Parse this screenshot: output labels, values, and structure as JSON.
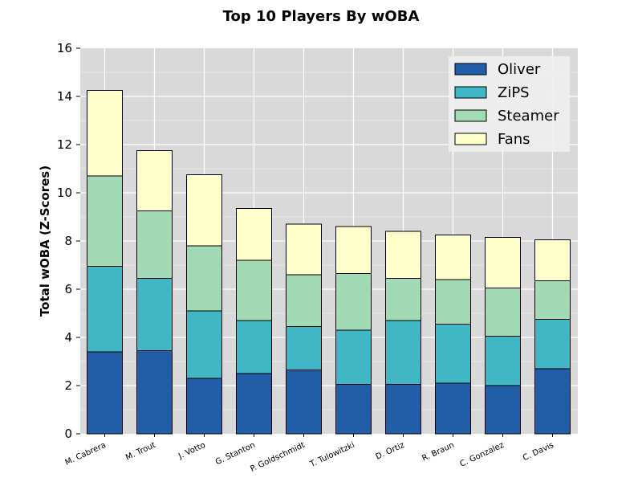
{
  "chart_data": {
    "type": "bar",
    "stacked": true,
    "title": "Top 10 Players By wOBA",
    "xlabel": "",
    "ylabel": "Total wOBA (Z-Scores)",
    "ylim": [
      0,
      16
    ],
    "yticks": [
      "0",
      "2",
      "4",
      "6",
      "8",
      "10",
      "12",
      "14",
      "16"
    ],
    "grid": true,
    "legend_position": "top-right",
    "categories": [
      "M. Cabrera",
      "M. Trout",
      "J. Votto",
      "G. Stanton",
      "P. Goldschmidt",
      "T. Tulowitzki",
      "D. Ortiz",
      "R. Braun",
      "C. Gonzalez",
      "C. Davis"
    ],
    "series": [
      {
        "name": "Oliver",
        "color": "#225ea8",
        "values": [
          3.4,
          3.45,
          2.3,
          2.5,
          2.65,
          2.05,
          2.05,
          2.1,
          2.0,
          2.7
        ]
      },
      {
        "name": "ZiPS",
        "color": "#41b6c4",
        "values": [
          3.55,
          3.0,
          2.8,
          2.2,
          1.8,
          2.25,
          2.65,
          2.45,
          2.05,
          2.05
        ]
      },
      {
        "name": "Steamer",
        "color": "#a1dab4",
        "values": [
          3.75,
          2.8,
          2.7,
          2.5,
          2.15,
          2.35,
          1.75,
          1.85,
          2.0,
          1.6
        ]
      },
      {
        "name": "Fans",
        "color": "#ffffcc",
        "values": [
          3.55,
          2.5,
          2.95,
          2.15,
          2.1,
          1.95,
          1.95,
          1.85,
          2.1,
          1.7
        ]
      }
    ]
  }
}
